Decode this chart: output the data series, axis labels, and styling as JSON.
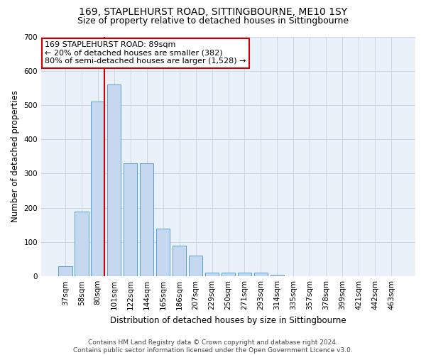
{
  "title_line1": "169, STAPLEHURST ROAD, SITTINGBOURNE, ME10 1SY",
  "title_line2": "Size of property relative to detached houses in Sittingbourne",
  "xlabel": "Distribution of detached houses by size in Sittingbourne",
  "ylabel": "Number of detached properties",
  "categories": [
    "37sqm",
    "58sqm",
    "80sqm",
    "101sqm",
    "122sqm",
    "144sqm",
    "165sqm",
    "186sqm",
    "207sqm",
    "229sqm",
    "250sqm",
    "271sqm",
    "293sqm",
    "314sqm",
    "335sqm",
    "357sqm",
    "378sqm",
    "399sqm",
    "421sqm",
    "442sqm",
    "463sqm"
  ],
  "values": [
    30,
    190,
    510,
    560,
    330,
    330,
    140,
    90,
    60,
    10,
    10,
    10,
    10,
    5,
    0,
    0,
    0,
    0,
    0,
    0,
    0
  ],
  "bar_color": "#c5d8f0",
  "bar_edge_color": "#5a9fd4",
  "vline_color": "#cc0000",
  "annotation_text": "169 STAPLEHURST ROAD: 89sqm\n← 20% of detached houses are smaller (382)\n80% of semi-detached houses are larger (1,528) →",
  "annotation_box_color": "#ffffff",
  "annotation_box_edge": "#cc0000",
  "ylim": [
    0,
    700
  ],
  "yticks": [
    0,
    100,
    200,
    300,
    400,
    500,
    600,
    700
  ],
  "grid_color": "#c8d8e8",
  "background_color": "#eaf1f8",
  "footer": "Contains HM Land Registry data © Crown copyright and database right 2024.\nContains public sector information licensed under the Open Government Licence v3.0.",
  "title_fontsize": 10,
  "subtitle_fontsize": 9,
  "xlabel_fontsize": 8.5,
  "ylabel_fontsize": 8.5,
  "tick_fontsize": 7.5,
  "footer_fontsize": 6.5
}
